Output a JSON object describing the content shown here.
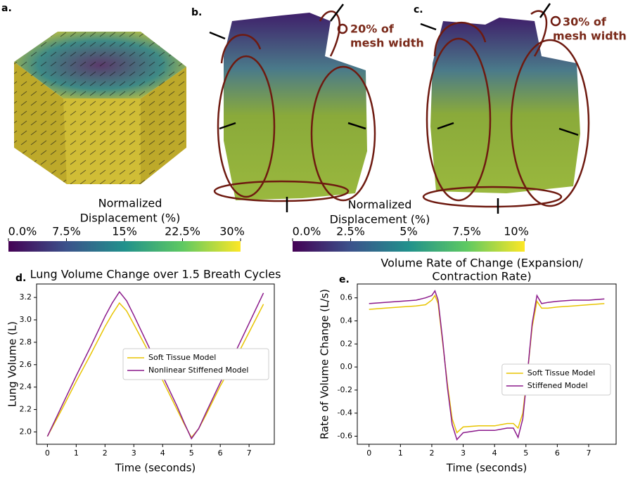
{
  "figure": {
    "panel_labels": [
      "a.",
      "b.",
      "c."
    ],
    "annotations": [
      [
        "20% of",
        "mesh width"
      ],
      [
        "30% of",
        "mesh width"
      ]
    ],
    "colorbars": [
      {
        "title": [
          "Normalized",
          "Displacement (%)"
        ],
        "lim": [
          0,
          30
        ],
        "ticks": [
          {
            "value": 0,
            "label": "0.0%"
          },
          {
            "value": 7.5,
            "label": "7.5%"
          },
          {
            "value": 15,
            "label": "15%"
          },
          {
            "value": 22.5,
            "label": "22.5%"
          },
          {
            "value": 30,
            "label": "30%"
          }
        ]
      },
      {
        "title": [
          "Normalized",
          "Displacement (%)"
        ],
        "lim": [
          0,
          10
        ],
        "ticks": [
          {
            "value": 0,
            "label": "0.0%"
          },
          {
            "value": 2.5,
            "label": "2.5%"
          },
          {
            "value": 5,
            "label": "5%"
          },
          {
            "value": 7.5,
            "label": "7.5%"
          },
          {
            "value": 10,
            "label": "10%"
          }
        ]
      }
    ]
  },
  "chart_data": [
    {
      "type": "line",
      "panel_label": "d.",
      "title": [
        "Lung Volume Change over 1.5 Breath Cycles"
      ],
      "x_label": "Time (seconds)",
      "y_label": "Lung Volume (L)",
      "x": [
        0,
        0.5,
        1,
        1.5,
        2,
        2.25,
        2.5,
        2.75,
        3,
        3.5,
        4,
        4.5,
        4.75,
        5,
        5.25,
        5.5,
        6,
        6.5,
        7,
        7.5
      ],
      "series": [
        {
          "name": "Soft Tissue Model",
          "color": "#e8c400",
          "values": [
            1.96,
            2.2,
            2.45,
            2.69,
            2.94,
            3.05,
            3.15,
            3.08,
            2.96,
            2.72,
            2.46,
            2.2,
            2.07,
            1.95,
            2.03,
            2.15,
            2.41,
            2.64,
            2.89,
            3.14
          ]
        },
        {
          "name": "Nonlinear Stiffened Model",
          "color": "#8b1a8b",
          "values": [
            1.96,
            2.23,
            2.5,
            2.76,
            3.03,
            3.15,
            3.25,
            3.17,
            3.04,
            2.77,
            2.5,
            2.23,
            2.08,
            1.94,
            2.03,
            2.17,
            2.44,
            2.7,
            2.97,
            3.24
          ]
        }
      ],
      "xlim": [
        -0.375,
        7.875
      ],
      "ylim": [
        1.89,
        3.32
      ],
      "xticks": [
        0,
        1,
        2,
        3,
        4,
        5,
        6,
        7
      ],
      "yticks": [
        {
          "value": 2,
          "label": "2.0"
        },
        2.2,
        2.4,
        2.6,
        2.8,
        {
          "value": 3,
          "label": "3.0"
        },
        3.2
      ],
      "legend": "center right"
    },
    {
      "type": "line",
      "panel_label": "e.",
      "title": [
        "Volume Rate of Change (Expansion/",
        "Contraction Rate)"
      ],
      "x_label": "Time (seconds)",
      "y_label": "Rate of Volume Change (L/s)",
      "x": [
        0,
        0.5,
        1,
        1.5,
        1.8,
        2.0,
        2.1,
        2.2,
        2.35,
        2.5,
        2.65,
        2.8,
        3,
        3.5,
        4,
        4.4,
        4.6,
        4.75,
        4.9,
        5.05,
        5.2,
        5.35,
        5.5,
        5.7,
        6,
        6.5,
        7,
        7.5
      ],
      "series": [
        {
          "name": "Soft Tissue Model",
          "color": "#e8c400",
          "values": [
            0.5,
            0.51,
            0.52,
            0.53,
            0.54,
            0.58,
            0.62,
            0.55,
            0.2,
            -0.15,
            -0.45,
            -0.57,
            -0.52,
            -0.51,
            -0.51,
            -0.49,
            -0.49,
            -0.53,
            -0.4,
            -0.05,
            0.35,
            0.57,
            0.51,
            0.51,
            0.52,
            0.53,
            0.54,
            0.55
          ]
        },
        {
          "name": "Stiffened Model",
          "color": "#8b1a8b",
          "values": [
            0.55,
            0.56,
            0.57,
            0.58,
            0.6,
            0.62,
            0.66,
            0.58,
            0.22,
            -0.18,
            -0.5,
            -0.63,
            -0.57,
            -0.55,
            -0.55,
            -0.53,
            -0.53,
            -0.61,
            -0.45,
            -0.05,
            0.38,
            0.62,
            0.55,
            0.56,
            0.57,
            0.58,
            0.58,
            0.59
          ]
        }
      ],
      "xlim": [
        -0.375,
        7.875
      ],
      "ylim": [
        -0.67,
        0.72
      ],
      "xticks": [
        0,
        1,
        2,
        3,
        4,
        5,
        6,
        7
      ],
      "yticks": [
        -0.6,
        -0.4,
        -0.2,
        {
          "value": 0,
          "label": "0.0"
        },
        0.2,
        0.4,
        0.6
      ],
      "legend": "lower right"
    }
  ]
}
